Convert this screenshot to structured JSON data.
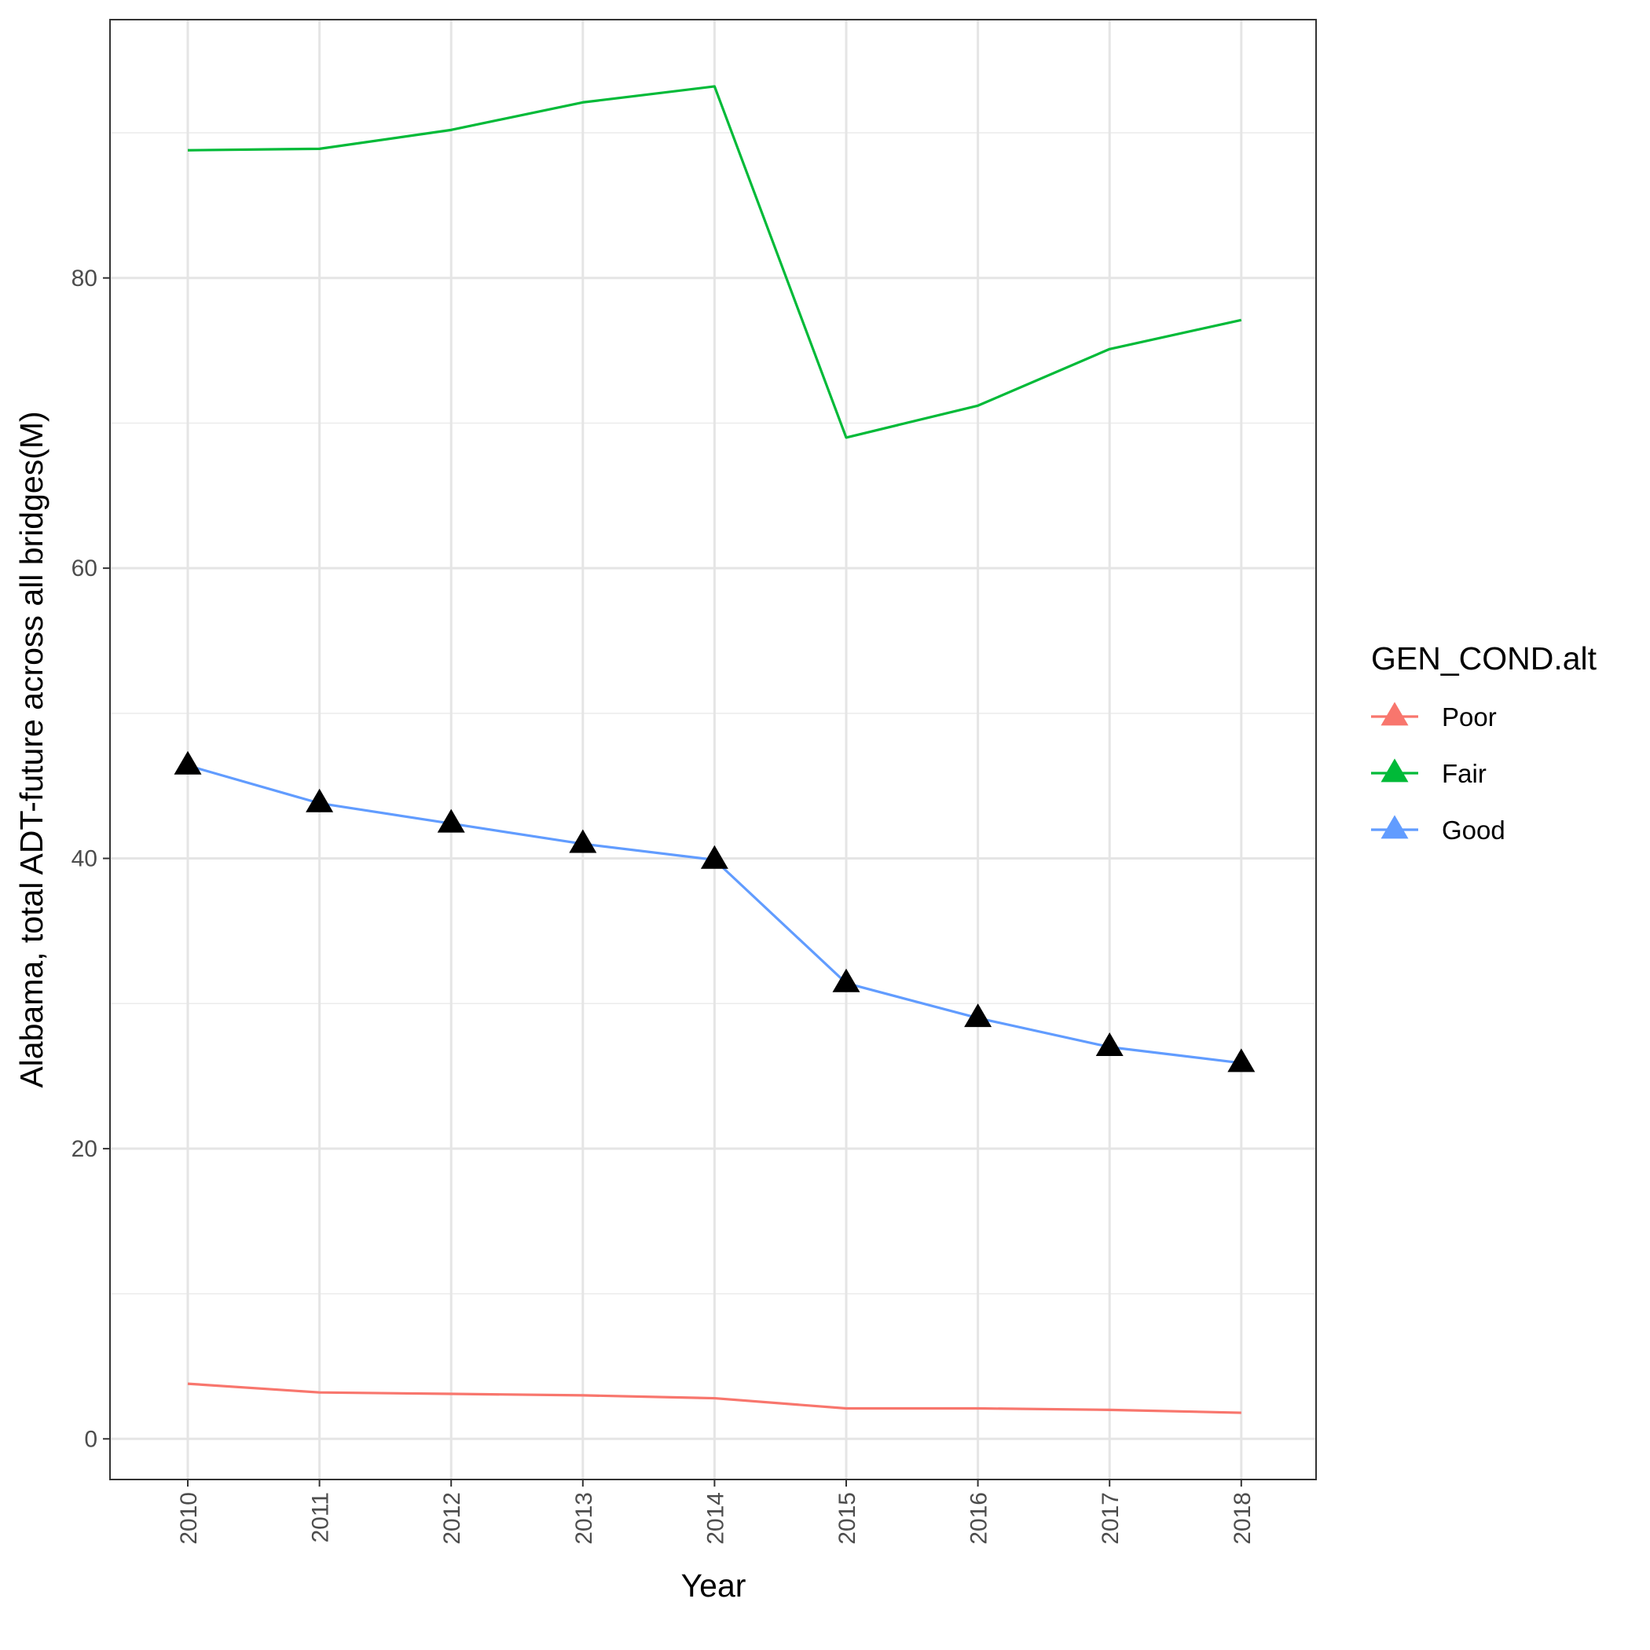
{
  "chart_data": {
    "type": "line",
    "xlabel": "Year",
    "ylabel": "Alabama, total ADT-future across all bridges(M)",
    "x": [
      "2010",
      "2011",
      "2012",
      "2013",
      "2014",
      "2015",
      "2016",
      "2017",
      "2018"
    ],
    "ylim": [
      -2.8,
      97.8
    ],
    "yticks": [
      0,
      20,
      40,
      60,
      80
    ],
    "ytick_labels": [
      "0",
      "20",
      "40",
      "60",
      "80"
    ],
    "grid": true,
    "legend_title": "GEN_COND.alt",
    "legend_position": "right",
    "marker": "triangle",
    "series": [
      {
        "name": "Poor",
        "color": "#F8766D",
        "values": [
          3.8,
          3.2,
          3.1,
          3.0,
          2.8,
          2.1,
          2.1,
          2.0,
          1.8
        ],
        "markers": false
      },
      {
        "name": "Fair",
        "color": "#00BA38",
        "values": [
          88.8,
          88.9,
          90.2,
          92.1,
          93.2,
          69.0,
          71.2,
          75.1,
          77.1
        ],
        "markers": false
      },
      {
        "name": "Good",
        "color": "#619CFF",
        "values": [
          46.4,
          43.8,
          42.4,
          41.0,
          39.9,
          31.4,
          29.0,
          27.0,
          25.9
        ],
        "markers": true,
        "marker_color": "#000000"
      }
    ]
  }
}
